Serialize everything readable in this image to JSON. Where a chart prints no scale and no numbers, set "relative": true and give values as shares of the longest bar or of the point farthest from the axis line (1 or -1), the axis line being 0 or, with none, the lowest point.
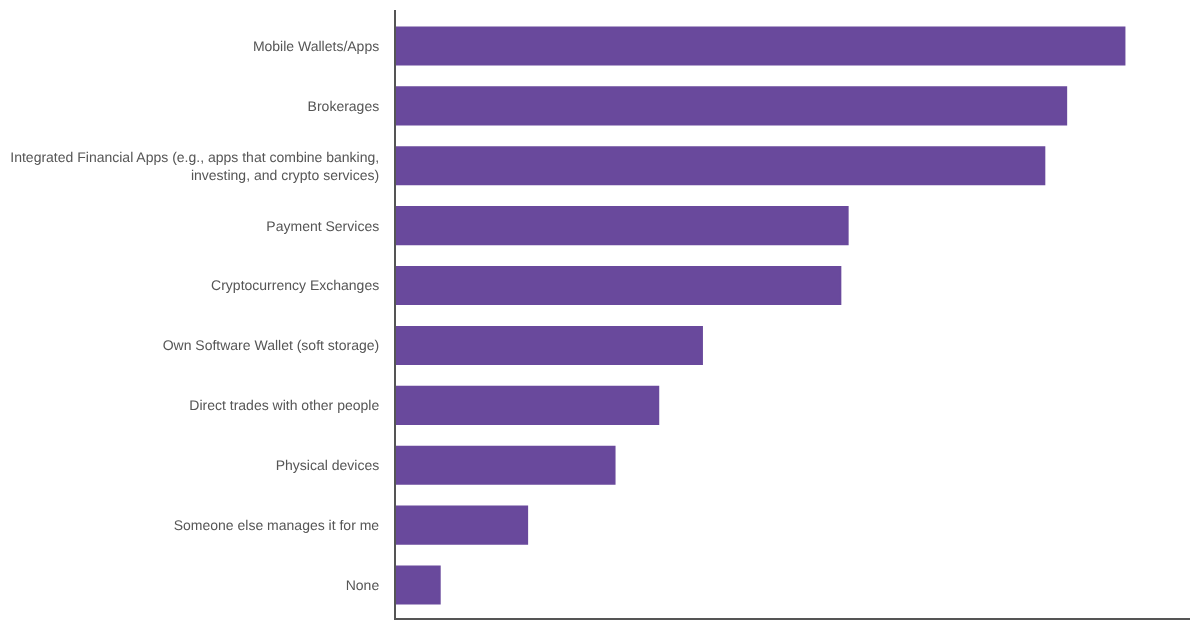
{
  "chart_data": {
    "type": "bar",
    "orientation": "horizontal",
    "relative": true,
    "categories": [
      "Mobile Wallets/Apps",
      "Brokerages",
      "Integrated Financial Apps (e.g., apps that combine banking, investing, and crypto services)",
      "Payment Services",
      "Cryptocurrency Exchanges",
      "Own Software Wallet (soft storage)",
      "Direct trades with other people",
      "Physical devices",
      "Someone else manages it for me",
      "None"
    ],
    "values": [
      1,
      0.92,
      0.89,
      0.62,
      0.61,
      0.42,
      0.36,
      0.3,
      0.18,
      0.06
    ],
    "color": "#69499c"
  }
}
